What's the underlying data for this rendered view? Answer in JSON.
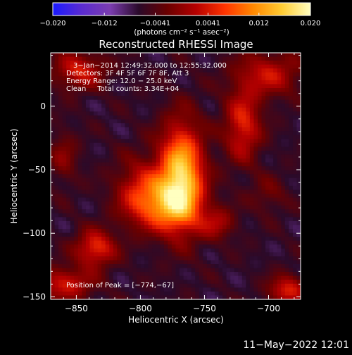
{
  "chart_data": {
    "type": "heatmap",
    "title": "Reconstructed RHESSI Image",
    "xlabel": "Heliocentric X (arcsec)",
    "ylabel": "Heliocentric Y (arcsec)",
    "xlim": [
      -870,
      -675
    ],
    "ylim": [
      -152,
      42
    ],
    "x_ticks": [
      -850,
      -800,
      -750,
      -700
    ],
    "y_ticks": [
      -150,
      -100,
      -50,
      0
    ],
    "colorbar": {
      "min": -0.02,
      "max": 0.02,
      "tick_values": [
        -0.02,
        -0.012,
        -0.0041,
        0.0041,
        0.012,
        0.02
      ],
      "tick_labels": [
        "−0.020",
        "−0.012",
        "−0.0041",
        "0.0041",
        "0.012",
        "0.020"
      ],
      "unit_label": "(photons cm⁻² s⁻¹ asec⁻²)",
      "colors": [
        "#1a1aff",
        "#5a2bd0",
        "#7b3db0",
        "#2a0a2a",
        "#6a0000",
        "#b50000",
        "#ff3300",
        "#ff8800",
        "#ffcc33",
        "#ffffc0"
      ]
    },
    "peak": {
      "x": -774,
      "y": -67,
      "label": "Position of Peak = [−774,−67]"
    },
    "annotations": [
      "3−Jan−2014 12:49:32.000 to 12:55:32.000",
      "Detectors: 3F 4F 5F 6F 7F 8F, Att 3",
      "Energy Range: 12.0 − 25.0 keV",
      "Clean     Total counts: 3.34E+04"
    ],
    "sources": [
      {
        "x": -768,
        "y": -55,
        "amp": 0.022,
        "sx": 12,
        "sy": 28
      },
      {
        "x": -782,
        "y": -78,
        "amp": 0.012,
        "sx": 18,
        "sy": 14
      },
      {
        "x": -800,
        "y": -65,
        "amp": 0.008,
        "sx": 14,
        "sy": 18
      },
      {
        "x": -835,
        "y": -112,
        "amp": 0.012,
        "sx": 11,
        "sy": 10
      },
      {
        "x": -848,
        "y": 28,
        "amp": 0.01,
        "sx": 14,
        "sy": 10
      },
      {
        "x": -720,
        "y": -15,
        "amp": 0.011,
        "sx": 10,
        "sy": 20
      },
      {
        "x": -700,
        "y": 25,
        "amp": 0.009,
        "sx": 18,
        "sy": 12
      },
      {
        "x": -860,
        "y": -140,
        "amp": 0.01,
        "sx": 16,
        "sy": 9
      },
      {
        "x": -685,
        "y": -145,
        "amp": 0.011,
        "sx": 10,
        "sy": 8
      },
      {
        "x": -740,
        "y": -92,
        "amp": 0.007,
        "sx": 10,
        "sy": 9
      },
      {
        "x": -860,
        "y": -40,
        "amp": 0.005,
        "sx": 8,
        "sy": 15
      },
      {
        "x": -700,
        "y": -70,
        "amp": 0.004,
        "sx": 10,
        "sy": 10
      }
    ]
  },
  "footer": {
    "timestamp": "11−May−2022 12:01"
  }
}
